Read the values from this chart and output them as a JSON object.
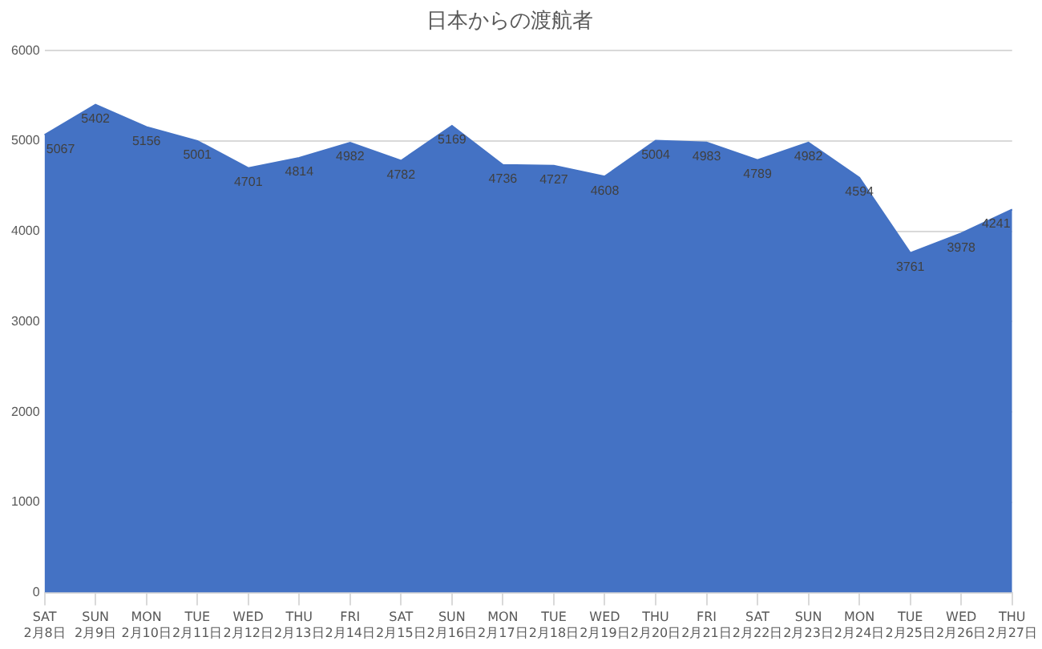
{
  "chart_data": {
    "type": "area",
    "title": "日本からの渡航者",
    "categories": [
      "SAT\n2月8日",
      "SUN\n2月9日",
      "MON\n2月10日",
      "TUE\n2月11日",
      "WED\n2月12日",
      "THU\n2月13日",
      "FRI\n2月14日",
      "SAT\n2月15日",
      "SUN\n2月16日",
      "MON\n2月17日",
      "TUE\n2月18日",
      "WED\n2月19日",
      "THU\n2月20日",
      "FRI\n2月21日",
      "SAT\n2月22日",
      "SUN\n2月23日",
      "MON\n2月24日",
      "TUE\n2月25日",
      "WED\n2月26日",
      "THU\n2月27日"
    ],
    "series": [
      {
        "color": "#4472c4",
        "values": [
          5067,
          5402,
          5156,
          5001,
          4701,
          4814,
          4982,
          4782,
          5169,
          4736,
          4727,
          4608,
          5004,
          4983,
          4789,
          4982,
          4594,
          3761,
          3978,
          4241
        ]
      }
    ],
    "ylim": [
      0,
      6000
    ],
    "yticks": [
      0,
      1000,
      2000,
      3000,
      4000,
      5000,
      6000
    ],
    "grid": "y",
    "legend": false,
    "data_labels": true
  }
}
